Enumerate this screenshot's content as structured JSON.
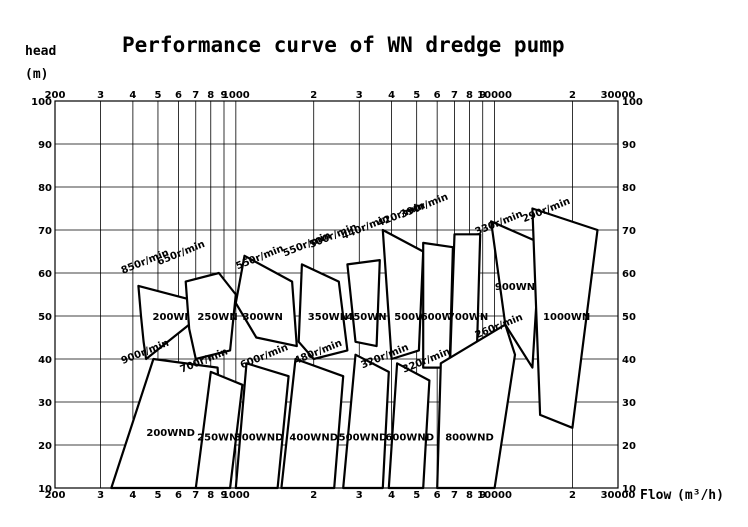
{
  "chart_data": {
    "type": "area",
    "title": "Performance curve of WN dredge pump",
    "ylabel_top": "head",
    "ylabel_unit": "(m)",
    "xlabel": "Flow",
    "xlabel_unit": "(m³/h)",
    "x_scale": "log",
    "xlim": [
      200,
      30000
    ],
    "ylim": [
      10,
      100
    ],
    "x_tick_labels": [
      {
        "x": 200,
        "label": "200"
      },
      {
        "x": 300,
        "label": "3"
      },
      {
        "x": 400,
        "label": "4"
      },
      {
        "x": 500,
        "label": "5"
      },
      {
        "x": 600,
        "label": "6"
      },
      {
        "x": 700,
        "label": "7"
      },
      {
        "x": 800,
        "label": "8"
      },
      {
        "x": 900,
        "label": "9"
      },
      {
        "x": 1000,
        "label": "1000"
      },
      {
        "x": 2000,
        "label": "2"
      },
      {
        "x": 3000,
        "label": "3"
      },
      {
        "x": 4000,
        "label": "4"
      },
      {
        "x": 5000,
        "label": "5"
      },
      {
        "x": 6000,
        "label": "6"
      },
      {
        "x": 7000,
        "label": "7"
      },
      {
        "x": 8000,
        "label": "8"
      },
      {
        "x": 9000,
        "label": "9"
      },
      {
        "x": 10000,
        "label": "10000"
      },
      {
        "x": 20000,
        "label": "2"
      },
      {
        "x": 30000,
        "label": "30000"
      }
    ],
    "y_ticks": [
      10,
      20,
      30,
      40,
      50,
      60,
      70,
      80,
      90,
      100
    ],
    "grid": true,
    "regions": [
      {
        "name": "200WN",
        "label_at": [
          570,
          50
        ],
        "points": [
          [
            420,
            57
          ],
          [
            650,
            54
          ],
          [
            660,
            48
          ],
          [
            450,
            40
          ],
          [
            440,
            44
          ],
          [
            430,
            50
          ]
        ]
      },
      {
        "name": "250WN",
        "label_at": [
          850,
          50
        ],
        "points": [
          [
            640,
            58
          ],
          [
            860,
            60
          ],
          [
            1000,
            55
          ],
          [
            950,
            42
          ],
          [
            700,
            40
          ],
          [
            660,
            47
          ]
        ]
      },
      {
        "name": "300WN",
        "label_at": [
          1270,
          50
        ],
        "points": [
          [
            1080,
            64
          ],
          [
            1650,
            58
          ],
          [
            1720,
            43
          ],
          [
            1200,
            45
          ],
          [
            1000,
            53
          ]
        ]
      },
      {
        "name": "350WN",
        "label_at": [
          2270,
          50
        ],
        "points": [
          [
            1800,
            62
          ],
          [
            2500,
            58
          ],
          [
            2700,
            42
          ],
          [
            2000,
            40
          ],
          [
            1750,
            44
          ]
        ]
      },
      {
        "name": "450WN",
        "label_at": [
          3200,
          50
        ],
        "points": [
          [
            2700,
            62
          ],
          [
            3600,
            63
          ],
          [
            3500,
            43
          ],
          [
            2900,
            44
          ]
        ]
      },
      {
        "name": "500WN",
        "label_at": [
          4900,
          50
        ],
        "points": [
          [
            3700,
            70
          ],
          [
            5300,
            65
          ],
          [
            5100,
            42
          ],
          [
            4000,
            40
          ]
        ]
      },
      {
        "name": "600WN",
        "label_at": [
          6200,
          50
        ],
        "points": [
          [
            5300,
            67
          ],
          [
            6900,
            66
          ],
          [
            6700,
            38
          ],
          [
            5300,
            38
          ]
        ]
      },
      {
        "name": "700WN",
        "label_at": [
          7900,
          50
        ],
        "points": [
          [
            7000,
            69
          ],
          [
            8800,
            69
          ],
          [
            8500,
            37
          ],
          [
            6700,
            36
          ]
        ]
      },
      {
        "name": "900WN",
        "label_at": [
          12000,
          57
        ],
        "points": [
          [
            9700,
            72
          ],
          [
            15000,
            67
          ],
          [
            14000,
            38
          ],
          [
            11000,
            48
          ]
        ]
      },
      {
        "name": "1000WN",
        "label_at": [
          19000,
          50
        ],
        "points": [
          [
            14000,
            75
          ],
          [
            25000,
            70
          ],
          [
            20000,
            24
          ],
          [
            15000,
            27
          ]
        ]
      },
      {
        "name": "200WND",
        "label_at": [
          560,
          23
        ],
        "points": [
          [
            480,
            40
          ],
          [
            850,
            38
          ],
          [
            900,
            10
          ],
          [
            330,
            10
          ]
        ]
      },
      {
        "name": "250WND",
        "label_at": [
          880,
          22
        ],
        "points": [
          [
            800,
            37
          ],
          [
            1060,
            34
          ],
          [
            950,
            10
          ],
          [
            700,
            10
          ]
        ]
      },
      {
        "name": "300WND",
        "label_at": [
          1230,
          22
        ],
        "points": [
          [
            1100,
            39
          ],
          [
            1600,
            36
          ],
          [
            1450,
            10
          ],
          [
            1000,
            10
          ]
        ]
      },
      {
        "name": "400WND",
        "label_at": [
          2000,
          22
        ],
        "points": [
          [
            1700,
            40
          ],
          [
            2600,
            36
          ],
          [
            2400,
            10
          ],
          [
            1500,
            10
          ]
        ]
      },
      {
        "name": "500WND",
        "label_at": [
          3100,
          22
        ],
        "points": [
          [
            2900,
            41
          ],
          [
            3900,
            37
          ],
          [
            3700,
            10
          ],
          [
            2600,
            10
          ]
        ]
      },
      {
        "name": "600WND",
        "label_at": [
          4700,
          22
        ],
        "points": [
          [
            4200,
            39
          ],
          [
            5600,
            35
          ],
          [
            5300,
            10
          ],
          [
            3900,
            10
          ]
        ]
      },
      {
        "name": "800WND",
        "label_at": [
          8000,
          22
        ],
        "points": [
          [
            6200,
            39
          ],
          [
            11000,
            48
          ],
          [
            12000,
            41
          ],
          [
            10000,
            10
          ],
          [
            6000,
            10
          ]
        ]
      }
    ],
    "speed_labels": [
      {
        "text": "850r/min",
        "x": 450,
        "y": 62
      },
      {
        "text": "650r/min",
        "x": 620,
        "y": 64
      },
      {
        "text": "550r/min",
        "x": 1250,
        "y": 63
      },
      {
        "text": "550r/min",
        "x": 1900,
        "y": 66
      },
      {
        "text": "500r/min",
        "x": 2400,
        "y": 68
      },
      {
        "text": "440r/min",
        "x": 3200,
        "y": 70
      },
      {
        "text": "420r/min",
        "x": 4400,
        "y": 73
      },
      {
        "text": "390r/min",
        "x": 5400,
        "y": 75
      },
      {
        "text": "330r/min",
        "x": 10500,
        "y": 71
      },
      {
        "text": "290r/min",
        "x": 16000,
        "y": 74
      },
      {
        "text": "260r/min",
        "x": 10500,
        "y": 47
      },
      {
        "text": "900r/min",
        "x": 450,
        "y": 41
      },
      {
        "text": "700r/min",
        "x": 760,
        "y": 39
      },
      {
        "text": "600r/min",
        "x": 1300,
        "y": 40
      },
      {
        "text": "480r/min",
        "x": 2100,
        "y": 41
      },
      {
        "text": "320r/min",
        "x": 3800,
        "y": 40
      },
      {
        "text": "320r/min",
        "x": 5500,
        "y": 39
      }
    ]
  }
}
